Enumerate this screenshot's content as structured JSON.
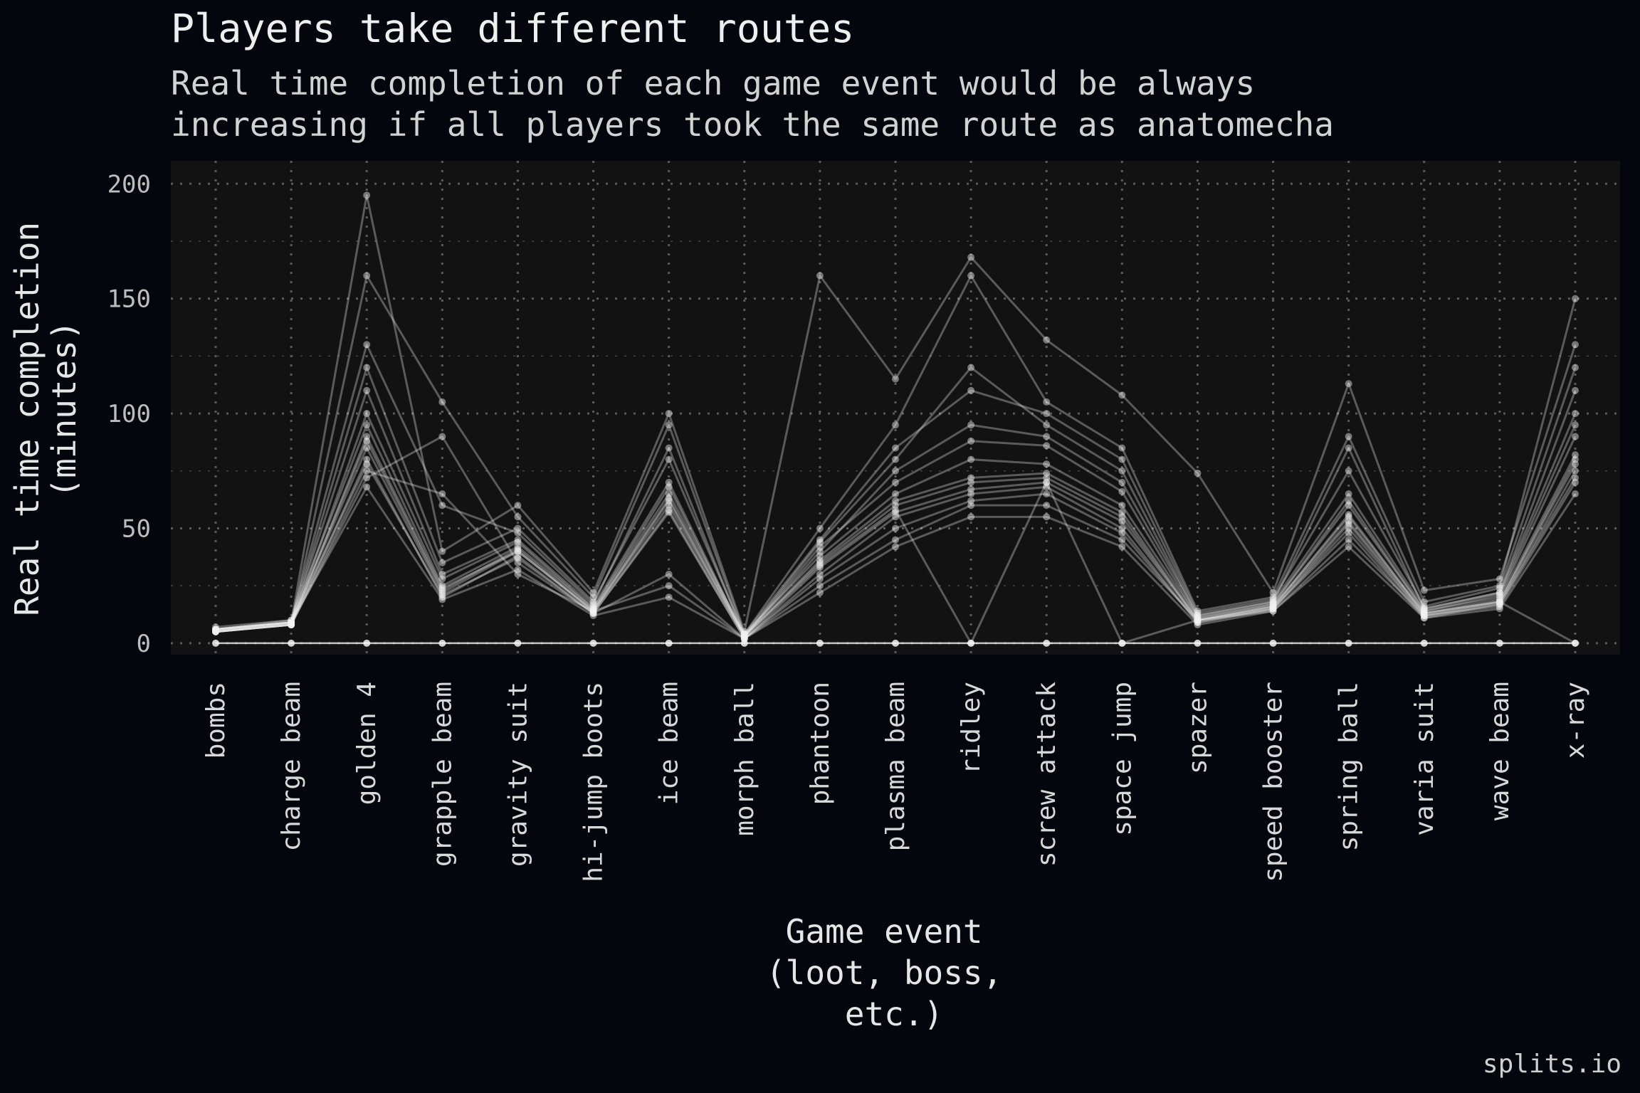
{
  "header": {
    "title": "Players take different routes",
    "subtitle_line1": "Real time completion of each game event would be always",
    "subtitle_line2": "increasing if all players took the same route as anatomecha"
  },
  "caption": "splits.io",
  "colors": {
    "background": "#05060d",
    "panel": "#121212",
    "lines": "#f2f2f2",
    "grid": "#5a5a5a"
  },
  "chart_data": {
    "type": "line",
    "title": "Players take different routes",
    "subtitle": "Real time completion of each game event would be always increasing if all players took the same route as anatomecha",
    "xlabel": [
      "Game event",
      "(loot, boss,",
      "etc.)"
    ],
    "ylabel": [
      "Real time completion",
      "(minutes)"
    ],
    "ylim": [
      -5,
      210
    ],
    "yticks": [
      0,
      50,
      100,
      150,
      200
    ],
    "grid": true,
    "categories": [
      "bombs",
      "charge beam",
      "golden 4",
      "grapple beam",
      "gravity suit",
      "hi-jump boots",
      "ice beam",
      "morph ball",
      "phantoon",
      "plasma beam",
      "ridley",
      "screw attack",
      "space jump",
      "spazer",
      "speed booster",
      "spring ball",
      "varia suit",
      "wave beam",
      "x-ray"
    ],
    "series": [
      {
        "values": [
          6,
          9,
          85,
          22,
          40,
          14,
          62,
          3,
          35,
          60,
          70,
          72,
          55,
          10,
          16,
          55,
          13,
          18,
          80
        ]
      },
      {
        "values": [
          5,
          8,
          80,
          20,
          38,
          13,
          58,
          2,
          30,
          55,
          65,
          68,
          50,
          9,
          15,
          50,
          12,
          17,
          75
        ]
      },
      {
        "values": [
          7,
          10,
          95,
          25,
          42,
          15,
          65,
          4,
          38,
          65,
          80,
          78,
          60,
          11,
          17,
          60,
          14,
          20,
          90
        ]
      },
      {
        "values": [
          5,
          8,
          75,
          65,
          30,
          14,
          25,
          2,
          25,
          45,
          60,
          60,
          45,
          10,
          14,
          45,
          12,
          16,
          70
        ]
      },
      {
        "values": [
          6,
          9,
          110,
          30,
          45,
          16,
          70,
          3,
          40,
          75,
          95,
          90,
          70,
          12,
          18,
          65,
          15,
          22,
          100
        ]
      },
      {
        "values": [
          5,
          8,
          72,
          90,
          35,
          13,
          30,
          2,
          28,
          50,
          62,
          65,
          48,
          9,
          15,
          48,
          11,
          17,
          72
        ]
      },
      {
        "values": [
          6,
          9,
          88,
          23,
          41,
          14,
          63,
          3,
          36,
          62,
          72,
          74,
          57,
          10,
          16,
          56,
          13,
          19,
          82
        ]
      },
      {
        "values": [
          5,
          8,
          100,
          28,
          44,
          15,
          68,
          3,
          42,
          70,
          88,
          86,
          66,
          11,
          17,
          62,
          14,
          21,
          95
        ]
      },
      {
        "values": [
          6,
          9,
          120,
          35,
          50,
          18,
          80,
          4,
          45,
          85,
          110,
          100,
          80,
          13,
          19,
          75,
          16,
          24,
          120
        ]
      },
      {
        "values": [
          5,
          8,
          160,
          105,
          55,
          20,
          95,
          4,
          50,
          95,
          160,
          105,
          85,
          14,
          20,
          90,
          18,
          25,
          150
        ]
      },
      {
        "values": [
          6,
          9,
          195,
          40,
          60,
          22,
          100,
          5,
          160,
          115,
          168,
          132,
          108,
          74,
          22,
          113,
          23,
          28,
          130
        ]
      },
      {
        "values": [
          5,
          9,
          68,
          19,
          32,
          12,
          20,
          2,
          22,
          42,
          55,
          55,
          42,
          8,
          14,
          42,
          11,
          15,
          65
        ]
      },
      {
        "values": [
          6,
          10,
          130,
          60,
          48,
          17,
          85,
          3,
          44,
          80,
          120,
          95,
          75,
          12,
          18,
          85,
          15,
          22,
          110
        ]
      },
      {
        "values": [
          5,
          8,
          90,
          24,
          40,
          14,
          60,
          3,
          34,
          58,
          0,
          70,
          0,
          10,
          15,
          52,
          12,
          18,
          0
        ]
      },
      {
        "values": [
          6,
          9,
          78,
          21,
          37,
          13,
          57,
          2,
          33,
          57,
          67,
          70,
          53,
          10,
          16,
          53,
          13,
          18,
          78
        ]
      }
    ]
  }
}
